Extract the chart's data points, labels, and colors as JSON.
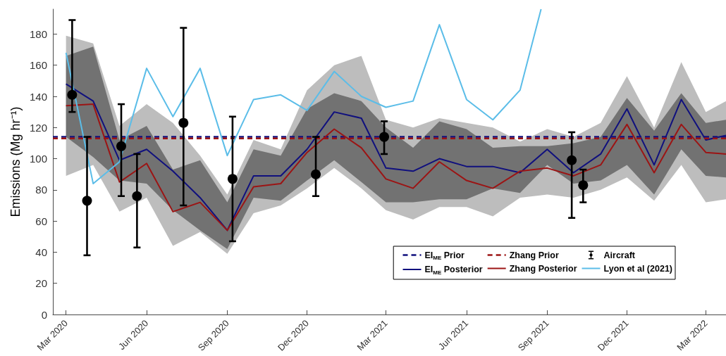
{
  "chart_data": {
    "type": "line",
    "ylabel": "Emissions (Mg hr⁻¹)",
    "xlim": [
      "2020-02-15",
      "2022-03-24"
    ],
    "xticks": [
      {
        "value": "2020-03",
        "label": "Mar 2020"
      },
      {
        "value": "2020-06",
        "label": "Jun 2020"
      },
      {
        "value": "2020-09",
        "label": "Sep 2020"
      },
      {
        "value": "2020-12",
        "label": "Dec 2020"
      },
      {
        "value": "2021-03",
        "label": "Mar 2021"
      },
      {
        "value": "2021-06",
        "label": "Jun 2021"
      },
      {
        "value": "2021-09",
        "label": "Sep 2021"
      },
      {
        "value": "2021-12",
        "label": "Dec 2021"
      },
      {
        "value": "2022-03",
        "label": "Mar 2022"
      }
    ],
    "ylim": [
      0,
      196
    ],
    "yticks": [
      0,
      20,
      40,
      60,
      80,
      100,
      120,
      140,
      160,
      180
    ],
    "grid": false,
    "legend": "bottom right",
    "marker": "none",
    "line_style": "solid",
    "series": [
      {
        "name": "EI$_{ME}$ Prior",
        "color": "#10107e",
        "line_style": "dashed",
        "x": [
          "2020-02-15",
          "2022-03-24"
        ],
        "values": [
          114,
          114
        ]
      },
      {
        "name": "EI$_{ME}$ Posterior",
        "color": "#10107e",
        "x": [
          "2020-03",
          "2020-04",
          "2020-05",
          "2020-06",
          "2020-07",
          "2020-08",
          "2020-09",
          "2020-10",
          "2020-11",
          "2020-12",
          "2021-01",
          "2021-02",
          "2021-03",
          "2021-04",
          "2021-05",
          "2021-06",
          "2021-07",
          "2021-08",
          "2021-09",
          "2021-10",
          "2021-11",
          "2021-12",
          "2022-01",
          "2022-02",
          "2022-03",
          "2022-03-24"
        ],
        "values": [
          148,
          137,
          99,
          106,
          92,
          75,
          54,
          89,
          89,
          106,
          130,
          126,
          94,
          92,
          100,
          95,
          95,
          91,
          106,
          91,
          103,
          132,
          96,
          138,
          112,
          115
        ],
        "lower": [
          89,
          96,
          66,
          75,
          44,
          53,
          39,
          65,
          70,
          81,
          94,
          81,
          67,
          61,
          69,
          69,
          63,
          75,
          77,
          75,
          80,
          88,
          73,
          96,
          72,
          74
        ],
        "upper": [
          179,
          174,
          121,
          135,
          123,
          102,
          77,
          112,
          106,
          144,
          160,
          166,
          125,
          120,
          126,
          123,
          120,
          111,
          119,
          114,
          123,
          153,
          120,
          162,
          130,
          137
        ]
      },
      {
        "name": "Zhang Prior",
        "color": "#9c1414",
        "line_style": "dashed",
        "x": [
          "2020-02-15",
          "2022-03-24"
        ],
        "values": [
          113,
          113
        ]
      },
      {
        "name": "Zhang Posterior",
        "color": "#9c1414",
        "x": [
          "2020-03",
          "2020-04",
          "2020-05",
          "2020-06",
          "2020-07",
          "2020-08",
          "2020-09",
          "2020-10",
          "2020-11",
          "2020-12",
          "2021-01",
          "2021-02",
          "2021-03",
          "2021-04",
          "2021-05",
          "2021-06",
          "2021-07",
          "2021-08",
          "2021-09",
          "2021-10",
          "2021-11",
          "2021-12",
          "2022-01",
          "2022-02",
          "2022-03",
          "2022-03-24"
        ],
        "values": [
          134,
          135,
          85,
          97,
          66,
          72,
          54,
          82,
          84,
          104,
          119,
          107,
          87,
          81,
          98,
          86,
          81,
          92,
          94,
          89,
          96,
          122,
          91,
          122,
          104,
          103
        ],
        "lower": [
          114,
          101,
          86,
          84,
          67,
          54,
          42,
          75,
          73,
          86,
          99,
          85,
          72,
          72,
          74,
          74,
          81,
          78,
          96,
          84,
          86,
          96,
          77,
          106,
          89,
          88
        ],
        "upper": [
          166,
          172,
          112,
          121,
          93,
          99,
          72,
          106,
          102,
          132,
          142,
          137,
          120,
          107,
          124,
          119,
          107,
          108,
          108,
          110,
          114,
          139,
          118,
          142,
          123,
          125
        ]
      },
      {
        "name": "Aircraft",
        "type": "scatter",
        "marker": "circle",
        "color": "#000000",
        "x": [
          "2020-03-08",
          "2020-03-25",
          "2020-05-03",
          "2020-05-21",
          "2020-07-13",
          "2020-09-07",
          "2020-12-11",
          "2021-02-27",
          "2021-09-29",
          "2021-10-12"
        ],
        "values": [
          141,
          73,
          108,
          76,
          123,
          87,
          90,
          114,
          99,
          83
        ],
        "errors": [
          [
            130,
            189
          ],
          [
            38,
            114
          ],
          [
            76,
            135
          ],
          [
            43,
            103
          ],
          [
            70,
            184
          ],
          [
            47,
            127
          ],
          [
            76,
            114
          ],
          [
            103,
            124
          ],
          [
            62,
            117
          ],
          [
            72,
            93
          ]
        ]
      },
      {
        "name": "Lyon et al (2021)",
        "color": "#5bbde8",
        "x": [
          "2020-03",
          "2020-04",
          "2020-05",
          "2020-06",
          "2020-07",
          "2020-08",
          "2020-09",
          "2020-10",
          "2020-11",
          "2020-12",
          "2021-01",
          "2021-02",
          "2021-03",
          "2021-04",
          "2021-05",
          "2021-06",
          "2021-07",
          "2021-08",
          "2021-08-25"
        ],
        "values": [
          168,
          84,
          98,
          158,
          127,
          158,
          102,
          138,
          141,
          131,
          156,
          140,
          133,
          137,
          186,
          138,
          125,
          144,
          196
        ]
      }
    ]
  }
}
